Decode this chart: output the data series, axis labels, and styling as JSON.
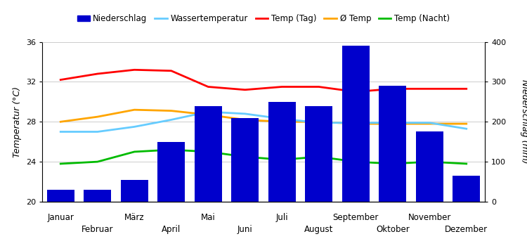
{
  "months": [
    "Januar",
    "Februar",
    "März",
    "April",
    "Mai",
    "Juni",
    "Juli",
    "August",
    "September",
    "Oktober",
    "November",
    "Dezember"
  ],
  "precipitation_mm": [
    30,
    30,
    55,
    150,
    240,
    210,
    250,
    240,
    390,
    290,
    175,
    65
  ],
  "temp_day": [
    32.2,
    32.8,
    33.2,
    33.1,
    31.5,
    31.2,
    31.5,
    31.5,
    31.0,
    31.3,
    31.3,
    31.3
  ],
  "temp_avg": [
    28.0,
    28.5,
    29.2,
    29.1,
    28.7,
    28.2,
    28.0,
    28.0,
    27.8,
    27.8,
    27.8,
    27.8
  ],
  "temp_night": [
    23.8,
    24.0,
    25.0,
    25.2,
    25.0,
    24.5,
    24.2,
    24.5,
    24.0,
    23.8,
    24.0,
    23.8
  ],
  "water_temp": [
    27.0,
    27.0,
    27.5,
    28.2,
    29.0,
    28.8,
    28.3,
    27.9,
    27.9,
    27.9,
    27.9,
    27.3
  ],
  "bar_color": "#0000CC",
  "temp_day_color": "#FF0000",
  "temp_avg_color": "#FFA500",
  "temp_night_color": "#00BB00",
  "water_temp_color": "#66CCFF",
  "temp_ylim": [
    20,
    36
  ],
  "precip_ylim": [
    0,
    400
  ],
  "temp_yticks": [
    20,
    24,
    28,
    32,
    36
  ],
  "precip_yticks": [
    0,
    100,
    200,
    300,
    400
  ],
  "ylabel_left": "Temperatur (°C)",
  "ylabel_right": "Niederschlag (mm)",
  "legend_labels": [
    "Niederschlag",
    "Wassertemperatur",
    "Temp (Tag)",
    "Ø Temp",
    "Temp (Nacht)"
  ],
  "background_color": "#ffffff",
  "grid_color": "#cccccc"
}
